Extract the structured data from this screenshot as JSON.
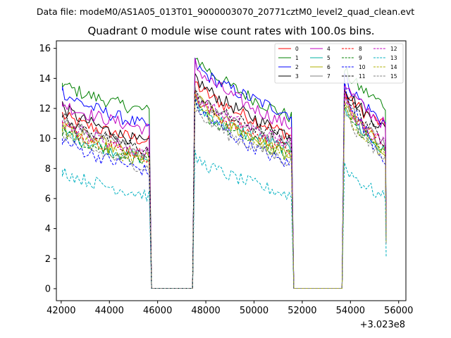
{
  "chart_data": {
    "type": "line",
    "suptitle": "Data file: modeM0/AS1A05_013T01_9000003070_20771cztM0_level2_quad_clean.evt",
    "title": "Quadrant 0 module wise count rates with 100.0s bins.",
    "xlabel": "",
    "ylabel": "",
    "x_offset_label": "+3.023e8",
    "xlim": [
      41800,
      56300
    ],
    "ylim": [
      -0.8,
      16.5
    ],
    "xticks": [
      42000,
      44000,
      46000,
      48000,
      50000,
      52000,
      54000,
      56000
    ],
    "xtick_labels": [
      "42000",
      "44000",
      "46000",
      "48000",
      "50000",
      "52000",
      "54000",
      "56000"
    ],
    "yticks": [
      0,
      2,
      4,
      6,
      8,
      10,
      12,
      14,
      16
    ],
    "ytick_labels": [
      "0",
      "2",
      "4",
      "6",
      "8",
      "10",
      "12",
      "14",
      "16"
    ],
    "segments": [
      {
        "start": 42050,
        "end": 45650
      },
      {
        "start": 47550,
        "end": 51550
      },
      {
        "start": 53750,
        "end": 55450
      }
    ],
    "gap_level": 0.02,
    "legend_location": "upper right",
    "series": [
      {
        "name": "0",
        "color": "#ff0000",
        "dash": "solid",
        "levels": [
          [
            11.6,
            9.8
          ],
          [
            13.8,
            10.2
          ],
          [
            13.2,
            10.8
          ]
        ]
      },
      {
        "name": "1",
        "color": "#008000",
        "dash": "solid",
        "levels": [
          [
            13.7,
            11.8
          ],
          [
            15.6,
            11.4
          ],
          [
            14.6,
            12.2
          ]
        ]
      },
      {
        "name": "2",
        "color": "#0000ff",
        "dash": "solid",
        "levels": [
          [
            13.2,
            10.8
          ],
          [
            15.0,
            11.6
          ],
          [
            14.2,
            11.0
          ]
        ]
      },
      {
        "name": "3",
        "color": "#000000",
        "dash": "solid",
        "levels": [
          [
            12.2,
            9.6
          ],
          [
            14.2,
            10.2
          ],
          [
            13.6,
            10.6
          ]
        ]
      },
      {
        "name": "4",
        "color": "#c000c0",
        "dash": "solid",
        "levels": [
          [
            12.4,
            10.6
          ],
          [
            15.0,
            10.8
          ],
          [
            13.8,
            10.9
          ]
        ]
      },
      {
        "name": "5",
        "color": "#00b0a0",
        "dash": "solid",
        "levels": [
          [
            10.6,
            8.6
          ],
          [
            12.4,
            9.2
          ],
          [
            12.4,
            9.0
          ]
        ]
      },
      {
        "name": "6",
        "color": "#b0b000",
        "dash": "solid",
        "levels": [
          [
            11.2,
            8.6
          ],
          [
            13.0,
            8.8
          ],
          [
            12.6,
            9.2
          ]
        ]
      },
      {
        "name": "7",
        "color": "#808080",
        "dash": "solid",
        "levels": [
          [
            11.4,
            9.0
          ],
          [
            13.2,
            9.6
          ],
          [
            12.8,
            9.6
          ]
        ]
      },
      {
        "name": "8",
        "color": "#ff0000",
        "dash": "dashed",
        "levels": [
          [
            11.0,
            8.8
          ],
          [
            12.8,
            9.2
          ],
          [
            12.6,
            9.6
          ]
        ]
      },
      {
        "name": "9",
        "color": "#008000",
        "dash": "dashed",
        "levels": [
          [
            10.6,
            8.4
          ],
          [
            12.2,
            8.8
          ],
          [
            12.2,
            9.0
          ]
        ]
      },
      {
        "name": "10",
        "color": "#0000ff",
        "dash": "dashed",
        "levels": [
          [
            10.0,
            7.8
          ],
          [
            12.4,
            8.2
          ],
          [
            13.8,
            8.6
          ]
        ]
      },
      {
        "name": "11",
        "color": "#000000",
        "dash": "dashed",
        "levels": [
          [
            11.4,
            9.2
          ],
          [
            13.0,
            9.8
          ],
          [
            13.4,
            9.8
          ]
        ]
      },
      {
        "name": "12",
        "color": "#c000c0",
        "dash": "dashed",
        "levels": [
          [
            11.2,
            9.0
          ],
          [
            13.0,
            9.6
          ],
          [
            12.8,
            9.6
          ]
        ]
      },
      {
        "name": "13",
        "color": "#00b0c0",
        "dash": "dashed",
        "levels": [
          [
            7.9,
            6.2
          ],
          [
            8.8,
            6.2
          ],
          [
            8.3,
            6.0
          ]
        ]
      },
      {
        "name": "14",
        "color": "#b0b000",
        "dash": "dashed",
        "levels": [
          [
            10.8,
            8.4
          ],
          [
            12.6,
            8.8
          ],
          [
            12.2,
            8.8
          ]
        ]
      },
      {
        "name": "15",
        "color": "#808080",
        "dash": "dashed",
        "levels": [
          [
            10.4,
            8.0
          ],
          [
            12.0,
            8.4
          ],
          [
            12.0,
            8.6
          ]
        ]
      }
    ]
  }
}
